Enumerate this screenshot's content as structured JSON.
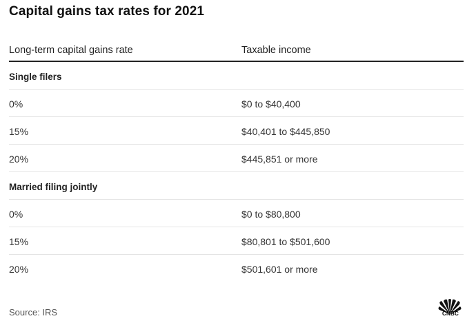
{
  "title": "Capital gains tax rates for 2021",
  "table": {
    "headers": [
      "Long-term capital gains rate",
      "Taxable income"
    ],
    "groups": [
      {
        "label": "Single filers",
        "rows": [
          {
            "rate": "0%",
            "income": "$0 to $40,400"
          },
          {
            "rate": "15%",
            "income": "$40,401 to $445,850"
          },
          {
            "rate": "20%",
            "income": "$445,851 or more"
          }
        ]
      },
      {
        "label": "Married filing jointly",
        "rows": [
          {
            "rate": "0%",
            "income": "$0 to $80,800"
          },
          {
            "rate": "15%",
            "income": "$80,801 to $501,600"
          },
          {
            "rate": "20%",
            "income": "$501,601 or more"
          }
        ]
      }
    ]
  },
  "footer": {
    "source": "Source: IRS",
    "logo_text": "CNBC",
    "logo_icon": "peacock-icon"
  }
}
